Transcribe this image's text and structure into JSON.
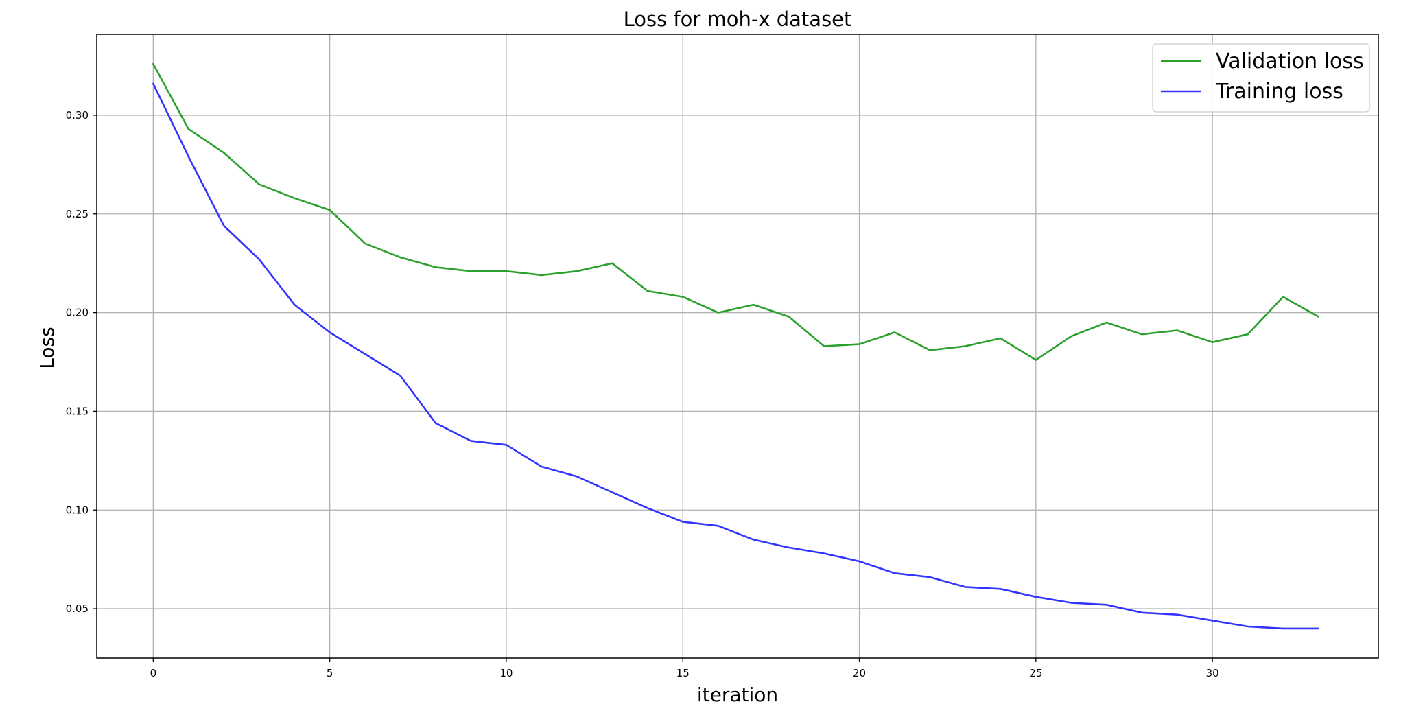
{
  "chart_data": {
    "type": "line",
    "title": "Loss for moh-x dataset",
    "xlabel": "iteration",
    "ylabel": "Loss",
    "xlim": [
      -1.6,
      34.7
    ],
    "ylim": [
      0.025,
      0.341
    ],
    "xticks": [
      0,
      5,
      10,
      15,
      20,
      25,
      30
    ],
    "xtick_labels": [
      "0",
      "5",
      "10",
      "15",
      "20",
      "25",
      "30"
    ],
    "yticks": [
      0.05,
      0.1,
      0.15,
      0.2,
      0.25,
      0.3
    ],
    "ytick_labels": [
      "0.05",
      "0.10",
      "0.15",
      "0.20",
      "0.25",
      "0.30"
    ],
    "grid": true,
    "legend_position": "top-right",
    "x": [
      0,
      1,
      2,
      3,
      4,
      5,
      6,
      7,
      8,
      9,
      10,
      11,
      12,
      13,
      14,
      15,
      16,
      17,
      18,
      19,
      20,
      21,
      22,
      23,
      24,
      25,
      26,
      27,
      28,
      29,
      30,
      31,
      32,
      33
    ],
    "series": [
      {
        "name": "Validation loss",
        "color": "#2ca02c",
        "values": [
          0.326,
          0.293,
          0.281,
          0.265,
          0.258,
          0.252,
          0.235,
          0.228,
          0.223,
          0.221,
          0.221,
          0.219,
          0.221,
          0.225,
          0.211,
          0.208,
          0.2,
          0.204,
          0.198,
          0.183,
          0.184,
          0.19,
          0.181,
          0.183,
          0.187,
          0.176,
          0.188,
          0.195,
          0.189,
          0.191,
          0.185,
          0.189,
          0.208,
          0.198
        ]
      },
      {
        "name": "Training loss",
        "color": "#3333ff",
        "values": [
          0.316,
          0.279,
          0.244,
          0.227,
          0.204,
          0.19,
          0.179,
          0.168,
          0.144,
          0.135,
          0.133,
          0.122,
          0.117,
          0.109,
          0.101,
          0.094,
          0.092,
          0.085,
          0.081,
          0.078,
          0.074,
          0.068,
          0.066,
          0.061,
          0.06,
          0.056,
          0.053,
          0.052,
          0.048,
          0.047,
          0.044,
          0.041,
          0.04,
          0.04
        ]
      }
    ]
  }
}
